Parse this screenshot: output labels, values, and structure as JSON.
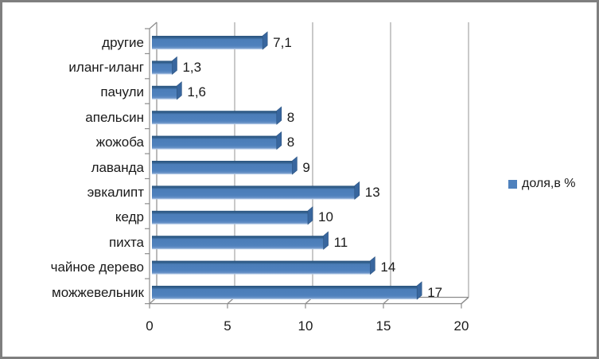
{
  "chart_data": {
    "type": "bar",
    "orientation": "horizontal",
    "title": "",
    "categories": [
      "другие",
      "иланг-иланг",
      "пачули",
      "апельсин",
      "жожоба",
      "лаванда",
      "эвкалипт",
      "кедр",
      "пихта",
      "чайное дерево",
      "можжевельник"
    ],
    "values": [
      7.1,
      1.3,
      1.6,
      8,
      8,
      9,
      13,
      10,
      11,
      14,
      17
    ],
    "value_labels": [
      "7,1",
      "1,3",
      "1,6",
      "8",
      "8",
      "9",
      "13",
      "10",
      "11",
      "14",
      "17"
    ],
    "series_name": "доля,в %",
    "xlim": [
      0,
      20
    ],
    "xticks": [
      0,
      5,
      10,
      15,
      20
    ],
    "xtick_labels": [
      "0",
      "5",
      "10",
      "15",
      "20"
    ],
    "grid": true,
    "legend_position": "right",
    "style": "3d-effect-bars",
    "colors": {
      "bar_face": "#4f81bd",
      "bar_face_dark": "#2a547f",
      "bar_face_light": "#bcd0ea",
      "bar_end_cap": "#38669e",
      "bar_end_cap_edge": "#2b5380",
      "grid": "#a5a5a5",
      "axis": "#8c8c8c",
      "text": "#1a1a1a",
      "frame_border": "#7f7f7f",
      "background": "#ffffff"
    }
  },
  "legend": {
    "label": "доля,в %",
    "marker_color": "#4f81bd"
  }
}
